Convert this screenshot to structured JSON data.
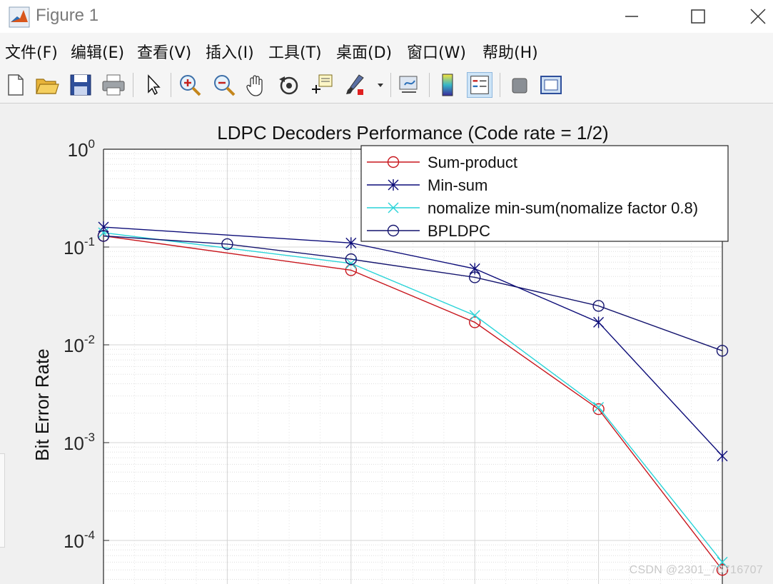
{
  "window": {
    "title": "Figure 1",
    "icon": "matlab-icon"
  },
  "menu": {
    "items": [
      "文件(F)",
      "编辑(E)",
      "查看(V)",
      "插入(I)",
      "工具(T)",
      "桌面(D)",
      "窗口(W)",
      "帮助(H)"
    ]
  },
  "toolbar": {
    "buttons": [
      "new-figure-icon",
      "open-file-icon",
      "save-icon",
      "print-icon",
      "pointer-icon",
      "zoom-in-icon",
      "zoom-out-icon",
      "pan-icon",
      "rotate-3d-icon",
      "data-cursor-icon",
      "brush-icon",
      "link-plot-icon",
      "colorbar-icon",
      "legend-icon",
      "hide-plot-tools-icon",
      "show-plot-tools-icon"
    ],
    "active": "legend-icon"
  },
  "chart_data": {
    "type": "line",
    "title": "LDPC Decoders Performance (Code rate = 1/2)",
    "ylabel": "Bit Error Rate",
    "xlabel": "",
    "yscale": "log",
    "ylim": [
      1e-05,
      1
    ],
    "ytick_labels": [
      "10^0",
      "10^-1",
      "10^-2",
      "10^-3",
      "10^-4"
    ],
    "x_positions": [
      1,
      2,
      3,
      4,
      5,
      6
    ],
    "grid": true,
    "legend_placement": "top-right",
    "series": [
      {
        "name": "Sum-product",
        "color": "#c8161d",
        "marker": "circle",
        "x": [
          1,
          2,
          3,
          4,
          5,
          6
        ],
        "values": [
          0.13,
          null,
          0.058,
          0.017,
          0.0022,
          5e-05
        ]
      },
      {
        "name": "Min-sum",
        "color": "#0c0c78",
        "marker": "asterisk",
        "x": [
          1,
          2,
          3,
          4,
          5,
          6
        ],
        "values": [
          0.16,
          null,
          0.11,
          0.06,
          0.017,
          0.00073
        ]
      },
      {
        "name": "nomalize min-sum(nomalize factor 0.8)",
        "color": "#2ad4d8",
        "marker": "x",
        "x": [
          1,
          2,
          3,
          4,
          5,
          6
        ],
        "values": [
          0.14,
          null,
          0.068,
          0.02,
          0.0023,
          6e-05
        ]
      },
      {
        "name": "BPLDPC",
        "color": "#14146e",
        "marker": "circle",
        "x": [
          1,
          2,
          3,
          4,
          5,
          6
        ],
        "values": [
          0.13,
          0.107,
          0.075,
          0.049,
          0.025,
          0.0087
        ]
      }
    ]
  },
  "watermark": "CSDN @2301_76716707"
}
